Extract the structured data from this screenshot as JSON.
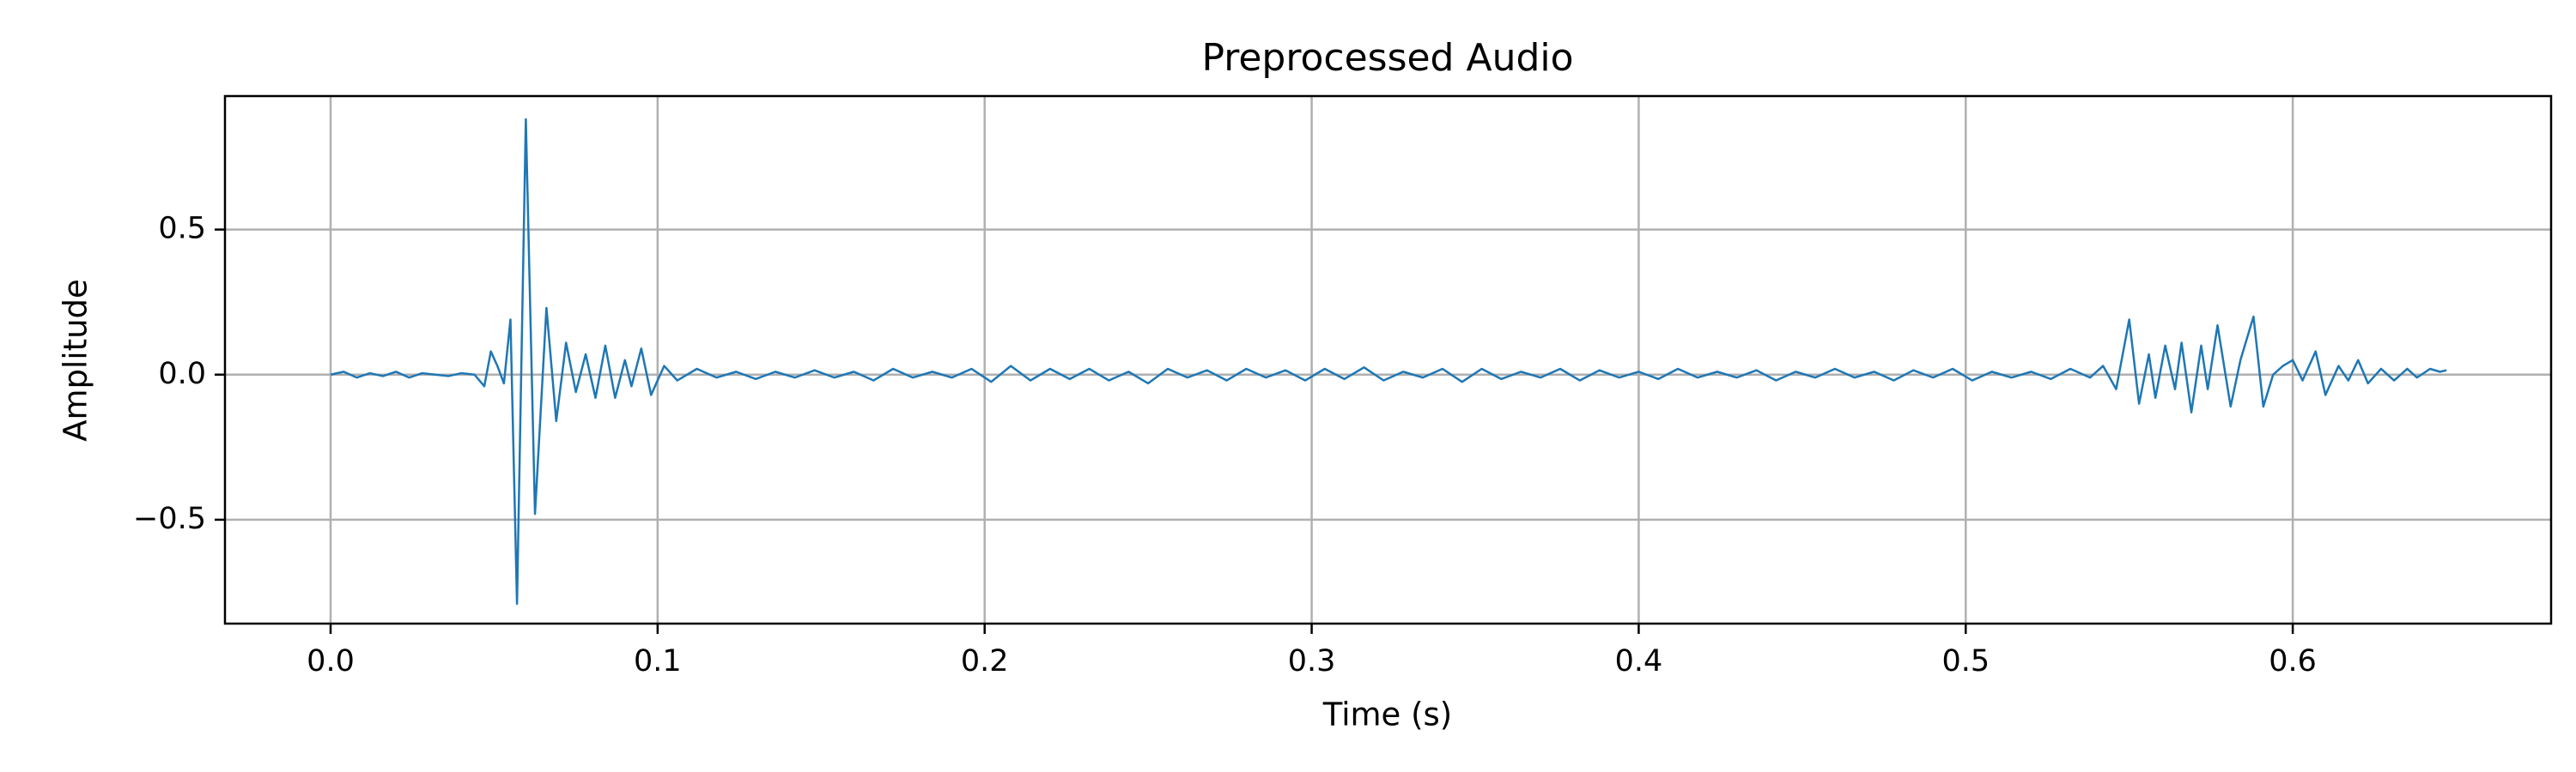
{
  "chart_data": {
    "type": "line",
    "title": "Preprocessed Audio",
    "xlabel": "Time (s)",
    "ylabel": "Amplitude",
    "color": "#1f77b4",
    "grid": true,
    "xlim": [
      -0.0323,
      0.679
    ],
    "ylim": [
      -0.858,
      0.96
    ],
    "xticks": [
      {
        "value": 0,
        "label": "0.0"
      },
      0.1,
      0.2,
      0.3,
      0.4,
      0.5,
      0.6
    ],
    "yticks": [
      {
        "value": -0.5,
        "label": "−0.5"
      },
      {
        "value": 0,
        "label": "0.0"
      },
      0.5
    ],
    "x": [
      0,
      0.004,
      0.008,
      0.012,
      0.016,
      0.02,
      0.024,
      0.028,
      0.032,
      0.036,
      0.04,
      0.044,
      0.047,
      0.049,
      0.051,
      0.053,
      0.055,
      0.057,
      0.0597,
      0.0625,
      0.066,
      0.069,
      0.072,
      0.075,
      0.078,
      0.081,
      0.084,
      0.087,
      0.09,
      0.092,
      0.095,
      0.098,
      0.102,
      0.106,
      0.112,
      0.118,
      0.124,
      0.13,
      0.136,
      0.142,
      0.148,
      0.154,
      0.16,
      0.166,
      0.172,
      0.178,
      0.184,
      0.19,
      0.196,
      0.202,
      0.208,
      0.214,
      0.22,
      0.226,
      0.232,
      0.238,
      0.244,
      0.25,
      0.256,
      0.262,
      0.268,
      0.274,
      0.28,
      0.286,
      0.292,
      0.298,
      0.304,
      0.31,
      0.316,
      0.322,
      0.328,
      0.334,
      0.34,
      0.346,
      0.352,
      0.358,
      0.364,
      0.37,
      0.376,
      0.382,
      0.388,
      0.394,
      0.4,
      0.406,
      0.412,
      0.418,
      0.424,
      0.43,
      0.436,
      0.442,
      0.448,
      0.454,
      0.46,
      0.466,
      0.472,
      0.478,
      0.484,
      0.49,
      0.496,
      0.502,
      0.508,
      0.514,
      0.52,
      0.526,
      0.532,
      0.538,
      0.542,
      0.546,
      0.55,
      0.553,
      0.556,
      0.558,
      0.561,
      0.564,
      0.566,
      0.569,
      0.572,
      0.574,
      0.577,
      0.581,
      0.584,
      0.588,
      0.591,
      0.594,
      0.597,
      0.6,
      0.603,
      0.607,
      0.61,
      0.614,
      0.617,
      0.62,
      0.623,
      0.627,
      0.631,
      0.635,
      0.638,
      0.642,
      0.645,
      0.647
    ],
    "values": [
      0.0,
      0.01,
      -0.01,
      0.005,
      -0.005,
      0.01,
      -0.01,
      0.005,
      0.0,
      -0.005,
      0.005,
      0.0,
      -0.04,
      0.08,
      0.03,
      -0.03,
      0.19,
      -0.79,
      0.88,
      -0.48,
      0.23,
      -0.16,
      0.11,
      -0.06,
      0.07,
      -0.08,
      0.1,
      -0.08,
      0.05,
      -0.04,
      0.09,
      -0.07,
      0.03,
      -0.02,
      0.02,
      -0.01,
      0.01,
      -0.015,
      0.01,
      -0.01,
      0.015,
      -0.01,
      0.01,
      -0.02,
      0.02,
      -0.01,
      0.01,
      -0.01,
      0.02,
      -0.025,
      0.03,
      -0.02,
      0.02,
      -0.015,
      0.02,
      -0.02,
      0.01,
      -0.03,
      0.02,
      -0.01,
      0.015,
      -0.02,
      0.02,
      -0.01,
      0.015,
      -0.02,
      0.02,
      -0.015,
      0.025,
      -0.02,
      0.01,
      -0.01,
      0.02,
      -0.025,
      0.02,
      -0.015,
      0.01,
      -0.01,
      0.02,
      -0.02,
      0.015,
      -0.01,
      0.01,
      -0.015,
      0.02,
      -0.01,
      0.01,
      -0.01,
      0.015,
      -0.02,
      0.01,
      -0.01,
      0.02,
      -0.01,
      0.01,
      -0.02,
      0.015,
      -0.01,
      0.02,
      -0.02,
      0.01,
      -0.01,
      0.01,
      -0.015,
      0.02,
      -0.01,
      0.03,
      -0.05,
      0.19,
      -0.1,
      0.07,
      -0.08,
      0.1,
      -0.05,
      0.11,
      -0.13,
      0.1,
      -0.05,
      0.17,
      -0.11,
      0.05,
      0.2,
      -0.11,
      0.0,
      0.03,
      0.05,
      -0.02,
      0.08,
      -0.07,
      0.03,
      -0.02,
      0.05,
      -0.03,
      0.02,
      -0.02,
      0.02,
      -0.01,
      0.02,
      0.01,
      0.015
    ]
  }
}
